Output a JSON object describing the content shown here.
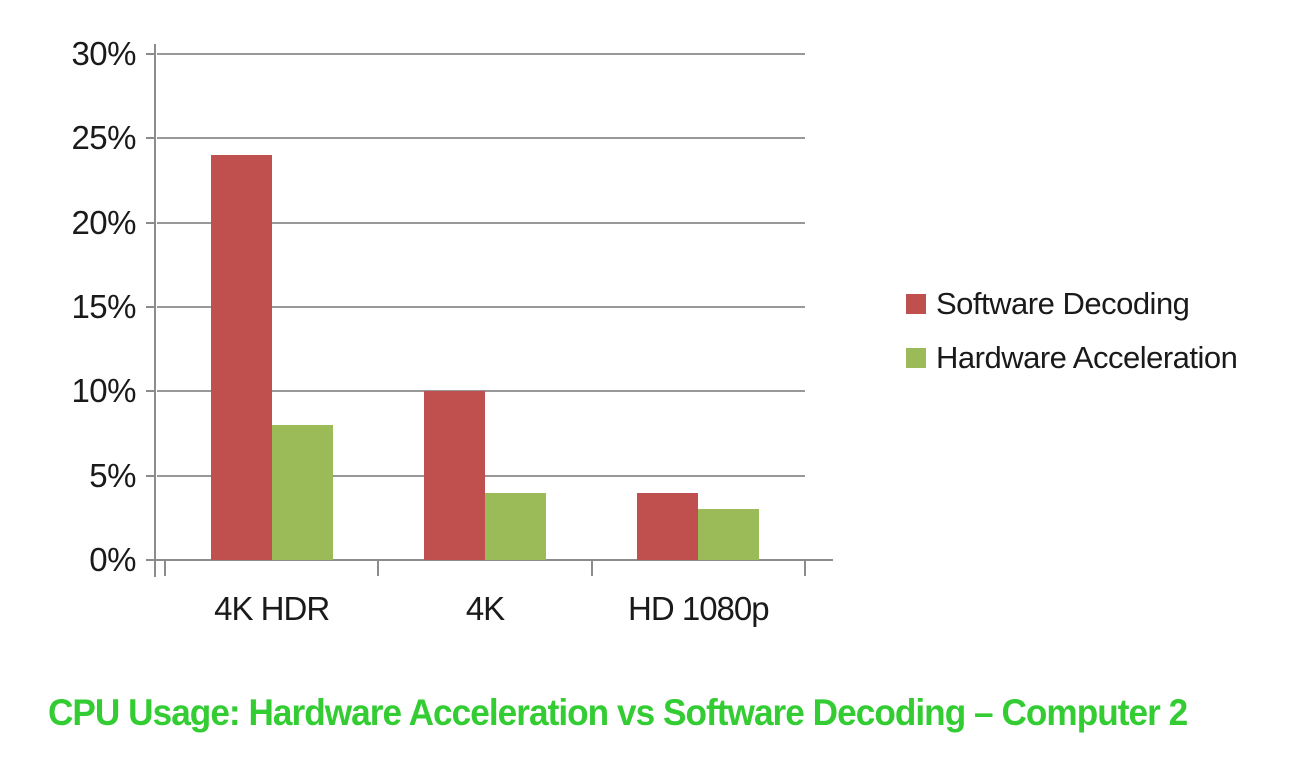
{
  "chart_data": {
    "type": "bar",
    "title": "CPU Usage: Hardware Acceleration vs Software Decoding – Computer 2",
    "title_color": "#33CC33",
    "categories": [
      "4K HDR",
      "4K",
      "HD 1080p"
    ],
    "series": [
      {
        "name": "Software Decoding",
        "color": "#C0504D",
        "values": [
          24,
          10,
          4
        ]
      },
      {
        "name": "Hardware Acceleration",
        "color": "#9BBB59",
        "values": [
          8,
          4,
          3
        ]
      }
    ],
    "xlabel": "",
    "ylabel": "",
    "ylim": [
      0,
      30
    ],
    "ytick_step": 5,
    "ytick_labels": [
      "0%",
      "5%",
      "10%",
      "15%",
      "20%",
      "25%",
      "30%"
    ],
    "grid": true,
    "legend_position": "right",
    "gridline_color": "#989898",
    "axis_color": "#8C8C8C",
    "label_color": "#1A1A1A"
  }
}
